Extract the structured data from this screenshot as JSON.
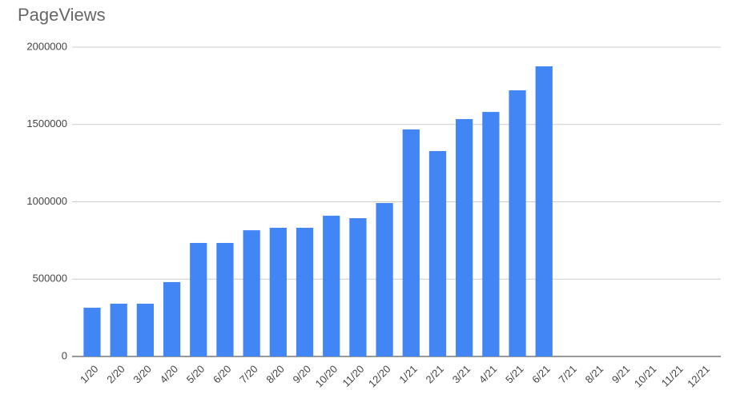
{
  "chart_data": {
    "type": "bar",
    "title": "PageViews",
    "categories": [
      "1/20",
      "2/20",
      "3/20",
      "4/20",
      "5/20",
      "6/20",
      "7/20",
      "8/20",
      "9/20",
      "10/20",
      "11/20",
      "12/20",
      "1/21",
      "2/21",
      "3/21",
      "4/21",
      "5/21",
      "6/21",
      "7/21",
      "8/21",
      "9/21",
      "10/21",
      "11/21",
      "12/21"
    ],
    "values": [
      315000,
      341000,
      341000,
      481000,
      734000,
      734000,
      816000,
      832000,
      832000,
      910000,
      894000,
      992000,
      1468000,
      1328000,
      1535000,
      1581000,
      1721000,
      1876000,
      null,
      null,
      null,
      null,
      null,
      null
    ],
    "color": "#4285f4",
    "ylim": [
      0,
      2000000
    ],
    "yticks": [
      0,
      500000,
      1000000,
      1500000,
      2000000
    ],
    "grid": true
  }
}
